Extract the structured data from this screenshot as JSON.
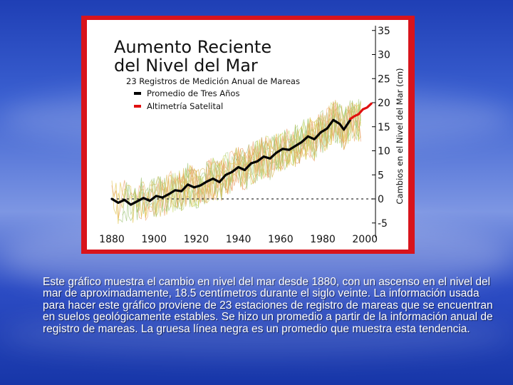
{
  "chart_data": {
    "type": "line",
    "title_lines": [
      "Aumento Reciente",
      "del Nivel del Mar"
    ],
    "subtitle": "23 Registros de Medición Anual de Mareas",
    "ylabel": "Cambios en el Nivel del Mar (cm)",
    "xlabel": "",
    "xlim": [
      1880,
      2005
    ],
    "ylim": [
      -8,
      36
    ],
    "x_ticks": [
      1880,
      1900,
      1920,
      1940,
      1960,
      1980,
      2000
    ],
    "y_ticks": [
      35,
      30,
      25,
      20,
      15,
      10,
      5,
      0,
      -5
    ],
    "legend_position": "top-left",
    "grid": false,
    "baseline": 0,
    "series": [
      {
        "name": "Promedio de Tres Años",
        "color": "#000000",
        "x": [
          1880,
          1883,
          1886,
          1889,
          1892,
          1895,
          1898,
          1901,
          1904,
          1907,
          1910,
          1913,
          1916,
          1919,
          1922,
          1925,
          1928,
          1931,
          1934,
          1937,
          1940,
          1943,
          1946,
          1949,
          1952,
          1955,
          1958,
          1961,
          1964,
          1967,
          1970,
          1973,
          1976,
          1979,
          1982,
          1985,
          1988,
          1990,
          1993
        ],
        "values": [
          0,
          -0.8,
          -0.2,
          -1.2,
          -0.5,
          0.2,
          -0.4,
          0.6,
          0.3,
          1.0,
          1.8,
          1.6,
          3.0,
          2.4,
          2.8,
          3.6,
          4.2,
          3.5,
          5.0,
          5.6,
          6.6,
          6.0,
          7.4,
          7.8,
          8.8,
          8.4,
          9.6,
          10.4,
          10.2,
          11.0,
          11.8,
          13.0,
          12.4,
          13.8,
          14.6,
          16.4,
          15.6,
          14.4,
          16.4
        ]
      },
      {
        "name": "Altimetría Satelital",
        "color": "#e01010",
        "x": [
          1993,
          1995,
          1997,
          1999,
          2001,
          2003
        ],
        "values": [
          16.6,
          17.2,
          17.6,
          18.6,
          19.0,
          19.8
        ]
      }
    ]
  },
  "caption": "Este gráfico muestra el cambio en nivel del mar desde 1880, con un ascenso en el nivel del mar de aproximadamente, 18.5 centímetros durante el siglo veinte. La información usada para hacer este gráfico proviene de 23 estaciones de registro de mareas que se encuentran en suelos geológicamente estables. Se hizo un promedio a partir de la información anual de registro de mareas. La gruesa línea negra es un promedio que muestra esta tendencia."
}
